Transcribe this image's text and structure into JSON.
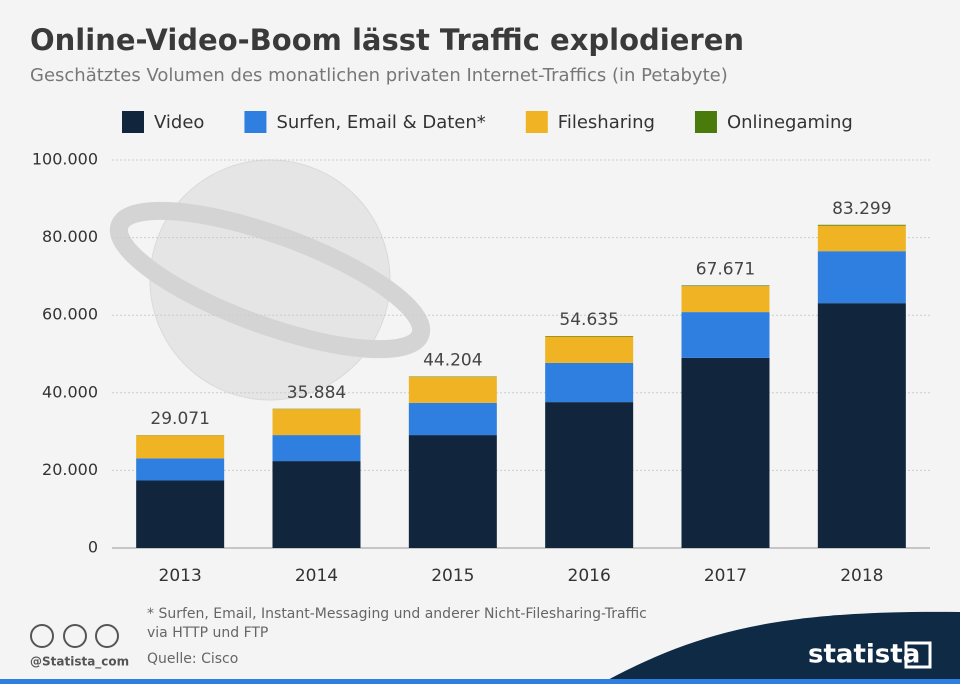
{
  "chart_data": {
    "type": "stacked_bar",
    "title": "Online-Video-Boom lässt Traffic explodieren",
    "subtitle": "Geschätztes Volumen des monatlichen privaten Internet-Traffics (in Petabyte)",
    "categories": [
      "2013",
      "2014",
      "2015",
      "2016",
      "2017",
      "2018"
    ],
    "series": [
      {
        "name": "Video",
        "color": "#11263d",
        "values": [
          17400,
          22400,
          29100,
          37600,
          49000,
          63100
        ]
      },
      {
        "name": "Surfen, Email & Daten*",
        "color": "#2f7fe0",
        "values": [
          5700,
          6700,
          8300,
          10100,
          11800,
          13400
        ]
      },
      {
        "name": "Filesharing",
        "color": "#efb324",
        "values": [
          5900,
          6700,
          6700,
          6800,
          6700,
          6600
        ]
      },
      {
        "name": "Onlinegaming",
        "color": "#4a7a0b",
        "values": [
          71,
          84,
          104,
          135,
          171,
          199
        ]
      }
    ],
    "totals": {
      "values": [
        29071,
        35884,
        44204,
        54635,
        67671,
        83299
      ],
      "value_labels": [
        "29.071",
        "35.884",
        "44.204",
        "54.635",
        "67.671",
        "83.299"
      ]
    },
    "ylim": [
      0,
      100000
    ],
    "yticks": [
      0,
      {
        "value": 20000,
        "label": "20.000"
      },
      {
        "value": 40000,
        "label": "40.000"
      },
      {
        "value": 60000,
        "label": "60.000"
      },
      {
        "value": 80000,
        "label": "80.000"
      },
      {
        "value": 100000,
        "label": "100.000"
      }
    ],
    "grid": true,
    "legend": "top",
    "footnote": [
      "* Surfen, Email, Instant-Messaging und anderer Nicht-Filesharing-Traffic",
      "via HTTP und FTP"
    ],
    "source": "Quelle: Cisco",
    "credit": "@Statista_com",
    "brand": "statista"
  }
}
